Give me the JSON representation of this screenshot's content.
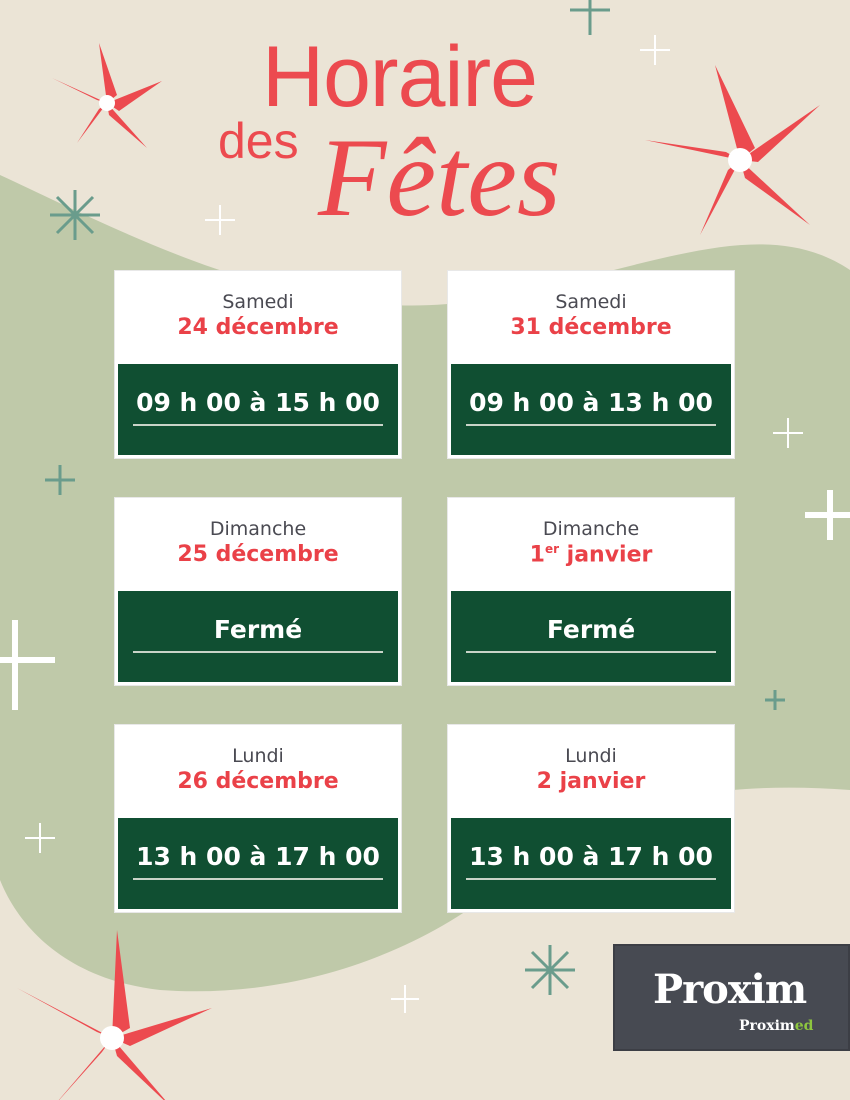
{
  "title": {
    "line1": "Horaire",
    "line2": "des",
    "line3": "Fêtes"
  },
  "colors": {
    "background": "#ebe4d6",
    "wave": "#bfc9a9",
    "accent": "#ec4a4f",
    "card_green": "#104f32",
    "logo_bg": "#474a52",
    "logo_green": "#8dc63f"
  },
  "schedule": [
    {
      "day": "Samedi",
      "date": "24 décembre",
      "hours": "09 h 00 à 15 h 00"
    },
    {
      "day": "Samedi",
      "date": "31 décembre",
      "hours": "09 h 00 à 13 h 00"
    },
    {
      "day": "Dimanche",
      "date": "25 décembre",
      "hours": "Fermé"
    },
    {
      "day": "Dimanche",
      "date_num": "1",
      "date_sup": "er",
      "date_rest": " janvier",
      "hours": "Fermé"
    },
    {
      "day": "Lundi",
      "date": "26 décembre",
      "hours": "13 h 00 à 17 h 00"
    },
    {
      "day": "Lundi",
      "date": "2 janvier",
      "hours": "13 h 00 à 17 h 00"
    }
  ],
  "logo": {
    "brand": "Proxim",
    "sub_a": "Proxim",
    "sub_b": "ed"
  }
}
